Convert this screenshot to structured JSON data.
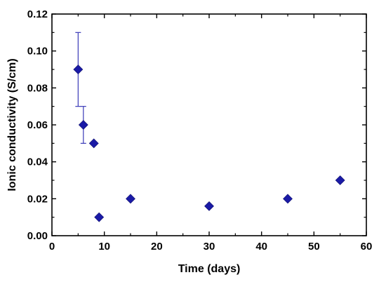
{
  "chart_data": {
    "type": "scatter",
    "title": "",
    "xlabel": "Time (days)",
    "ylabel": "Ionic conductivity (S/cm)",
    "xlim": [
      0,
      60
    ],
    "ylim": [
      0,
      0.12
    ],
    "x_ticks": [
      0,
      10,
      20,
      30,
      40,
      50,
      60
    ],
    "x_tick_labels": [
      "0",
      "10",
      "20",
      "30",
      "40",
      "50",
      "60"
    ],
    "y_ticks": [
      0,
      0.02,
      0.04,
      0.06,
      0.08,
      0.1,
      0.12
    ],
    "y_tick_labels": [
      "0.00",
      "0.02",
      "0.04",
      "0.06",
      "0.08",
      "0.10",
      "0.12"
    ],
    "grid": false,
    "legend": "none",
    "marker": "diamond",
    "marker_color": "#1a1aa6",
    "error_bar_color": "#3a3ab8",
    "series": [
      {
        "x": [
          5,
          6,
          8,
          9,
          15,
          30,
          45,
          55
        ],
        "y": [
          0.09,
          0.06,
          0.05,
          0.01,
          0.02,
          0.016,
          0.02,
          0.03
        ],
        "y_error": [
          0.02,
          0.01,
          null,
          null,
          null,
          null,
          null,
          null
        ]
      }
    ]
  }
}
